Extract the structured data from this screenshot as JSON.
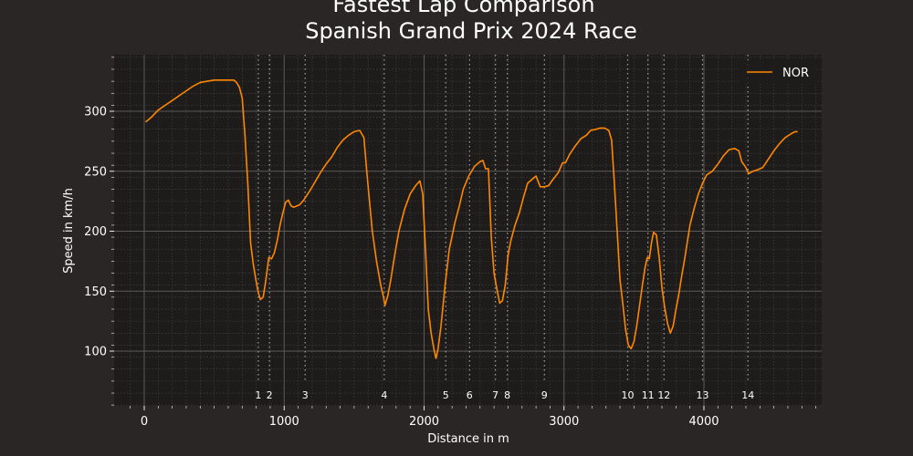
{
  "chart_data": {
    "type": "line",
    "title_line1": "Fastest Lap Comparison",
    "title_line2": "Spanish Grand Prix 2024 Race",
    "xlabel": "Distance in m",
    "ylabel": "Speed in km/h",
    "xlim": [
      -200,
      4850
    ],
    "ylim": [
      50,
      345
    ],
    "x_ticks": [
      0,
      1000,
      2000,
      3000,
      4000
    ],
    "y_ticks": [
      100,
      150,
      200,
      250,
      300
    ],
    "grid": true,
    "legend_position": "top-right",
    "series": [
      {
        "name": "NOR",
        "color": "#ff8700",
        "points": [
          [
            10,
            291
          ],
          [
            50,
            295
          ],
          [
            100,
            301
          ],
          [
            150,
            305
          ],
          [
            200,
            309
          ],
          [
            250,
            313
          ],
          [
            300,
            317
          ],
          [
            350,
            321
          ],
          [
            400,
            324
          ],
          [
            450,
            325
          ],
          [
            500,
            326
          ],
          [
            550,
            326
          ],
          [
            600,
            326
          ],
          [
            640,
            326
          ],
          [
            660,
            324
          ],
          [
            680,
            320
          ],
          [
            700,
            311
          ],
          [
            720,
            280
          ],
          [
            740,
            240
          ],
          [
            760,
            190
          ],
          [
            780,
            172
          ],
          [
            800,
            158
          ],
          [
            815,
            149
          ],
          [
            830,
            143
          ],
          [
            850,
            145
          ],
          [
            870,
            160
          ],
          [
            890,
            178
          ],
          [
            910,
            177
          ],
          [
            930,
            182
          ],
          [
            950,
            192
          ],
          [
            970,
            205
          ],
          [
            990,
            215
          ],
          [
            1010,
            224
          ],
          [
            1030,
            226
          ],
          [
            1050,
            221
          ],
          [
            1070,
            220
          ],
          [
            1090,
            221
          ],
          [
            1110,
            222
          ],
          [
            1140,
            226
          ],
          [
            1180,
            233
          ],
          [
            1220,
            241
          ],
          [
            1260,
            249
          ],
          [
            1300,
            256
          ],
          [
            1340,
            262
          ],
          [
            1380,
            270
          ],
          [
            1420,
            276
          ],
          [
            1460,
            280
          ],
          [
            1500,
            283
          ],
          [
            1540,
            284
          ],
          [
            1570,
            278
          ],
          [
            1590,
            250
          ],
          [
            1610,
            225
          ],
          [
            1630,
            200
          ],
          [
            1660,
            175
          ],
          [
            1690,
            155
          ],
          [
            1710,
            145
          ],
          [
            1720,
            138
          ],
          [
            1740,
            146
          ],
          [
            1760,
            158
          ],
          [
            1790,
            180
          ],
          [
            1820,
            200
          ],
          [
            1860,
            218
          ],
          [
            1900,
            231
          ],
          [
            1940,
            238
          ],
          [
            1970,
            242
          ],
          [
            1990,
            231
          ],
          [
            2010,
            185
          ],
          [
            2030,
            135
          ],
          [
            2050,
            115
          ],
          [
            2070,
            102
          ],
          [
            2085,
            94
          ],
          [
            2100,
            102
          ],
          [
            2120,
            120
          ],
          [
            2150,
            155
          ],
          [
            2180,
            185
          ],
          [
            2200,
            196
          ],
          [
            2220,
            207
          ],
          [
            2250,
            220
          ],
          [
            2280,
            235
          ],
          [
            2320,
            246
          ],
          [
            2360,
            254
          ],
          [
            2400,
            258
          ],
          [
            2420,
            259
          ],
          [
            2440,
            252
          ],
          [
            2460,
            252
          ],
          [
            2480,
            195
          ],
          [
            2500,
            165
          ],
          [
            2520,
            152
          ],
          [
            2540,
            140
          ],
          [
            2560,
            142
          ],
          [
            2580,
            155
          ],
          [
            2600,
            180
          ],
          [
            2620,
            192
          ],
          [
            2650,
            205
          ],
          [
            2680,
            215
          ],
          [
            2710,
            228
          ],
          [
            2740,
            240
          ],
          [
            2780,
            244
          ],
          [
            2800,
            246
          ],
          [
            2830,
            237
          ],
          [
            2860,
            237
          ],
          [
            2890,
            238
          ],
          [
            2920,
            243
          ],
          [
            2960,
            249
          ],
          [
            2990,
            257
          ],
          [
            3010,
            257
          ],
          [
            3040,
            264
          ],
          [
            3080,
            271
          ],
          [
            3120,
            277
          ],
          [
            3160,
            280
          ],
          [
            3190,
            284
          ],
          [
            3230,
            285
          ],
          [
            3260,
            286
          ],
          [
            3290,
            286
          ],
          [
            3320,
            284
          ],
          [
            3340,
            276
          ],
          [
            3360,
            240
          ],
          [
            3380,
            200
          ],
          [
            3400,
            160
          ],
          [
            3420,
            140
          ],
          [
            3440,
            118
          ],
          [
            3460,
            105
          ],
          [
            3480,
            102
          ],
          [
            3500,
            108
          ],
          [
            3520,
            121
          ],
          [
            3540,
            138
          ],
          [
            3560,
            155
          ],
          [
            3580,
            170
          ],
          [
            3595,
            178
          ],
          [
            3610,
            177
          ],
          [
            3625,
            190
          ],
          [
            3640,
            199
          ],
          [
            3660,
            197
          ],
          [
            3680,
            178
          ],
          [
            3700,
            153
          ],
          [
            3720,
            136
          ],
          [
            3740,
            123
          ],
          [
            3760,
            115
          ],
          [
            3780,
            121
          ],
          [
            3800,
            135
          ],
          [
            3820,
            147
          ],
          [
            3840,
            162
          ],
          [
            3860,
            175
          ],
          [
            3880,
            190
          ],
          [
            3900,
            205
          ],
          [
            3930,
            219
          ],
          [
            3960,
            231
          ],
          [
            3990,
            240
          ],
          [
            4020,
            247
          ],
          [
            4060,
            250
          ],
          [
            4100,
            256
          ],
          [
            4140,
            263
          ],
          [
            4180,
            268
          ],
          [
            4220,
            269
          ],
          [
            4250,
            267
          ],
          [
            4270,
            258
          ],
          [
            4300,
            253
          ],
          [
            4320,
            248
          ],
          [
            4350,
            250
          ],
          [
            4380,
            251
          ],
          [
            4420,
            253
          ],
          [
            4460,
            260
          ],
          [
            4500,
            267
          ],
          [
            4540,
            273
          ],
          [
            4580,
            278
          ],
          [
            4620,
            281
          ],
          [
            4650,
            283
          ],
          [
            4670,
            283
          ]
        ]
      }
    ],
    "corners": [
      {
        "number": "1",
        "distance": 815
      },
      {
        "number": "2",
        "distance": 895
      },
      {
        "number": "3",
        "distance": 1150
      },
      {
        "number": "4",
        "distance": 1715
      },
      {
        "number": "5",
        "distance": 2155
      },
      {
        "number": "6",
        "distance": 2325
      },
      {
        "number": "7",
        "distance": 2510
      },
      {
        "number": "8",
        "distance": 2595
      },
      {
        "number": "9",
        "distance": 2860
      },
      {
        "number": "10",
        "distance": 3455
      },
      {
        "number": "11",
        "distance": 3600
      },
      {
        "number": "12",
        "distance": 3715
      },
      {
        "number": "13",
        "distance": 3990
      },
      {
        "number": "14",
        "distance": 4315
      }
    ]
  }
}
